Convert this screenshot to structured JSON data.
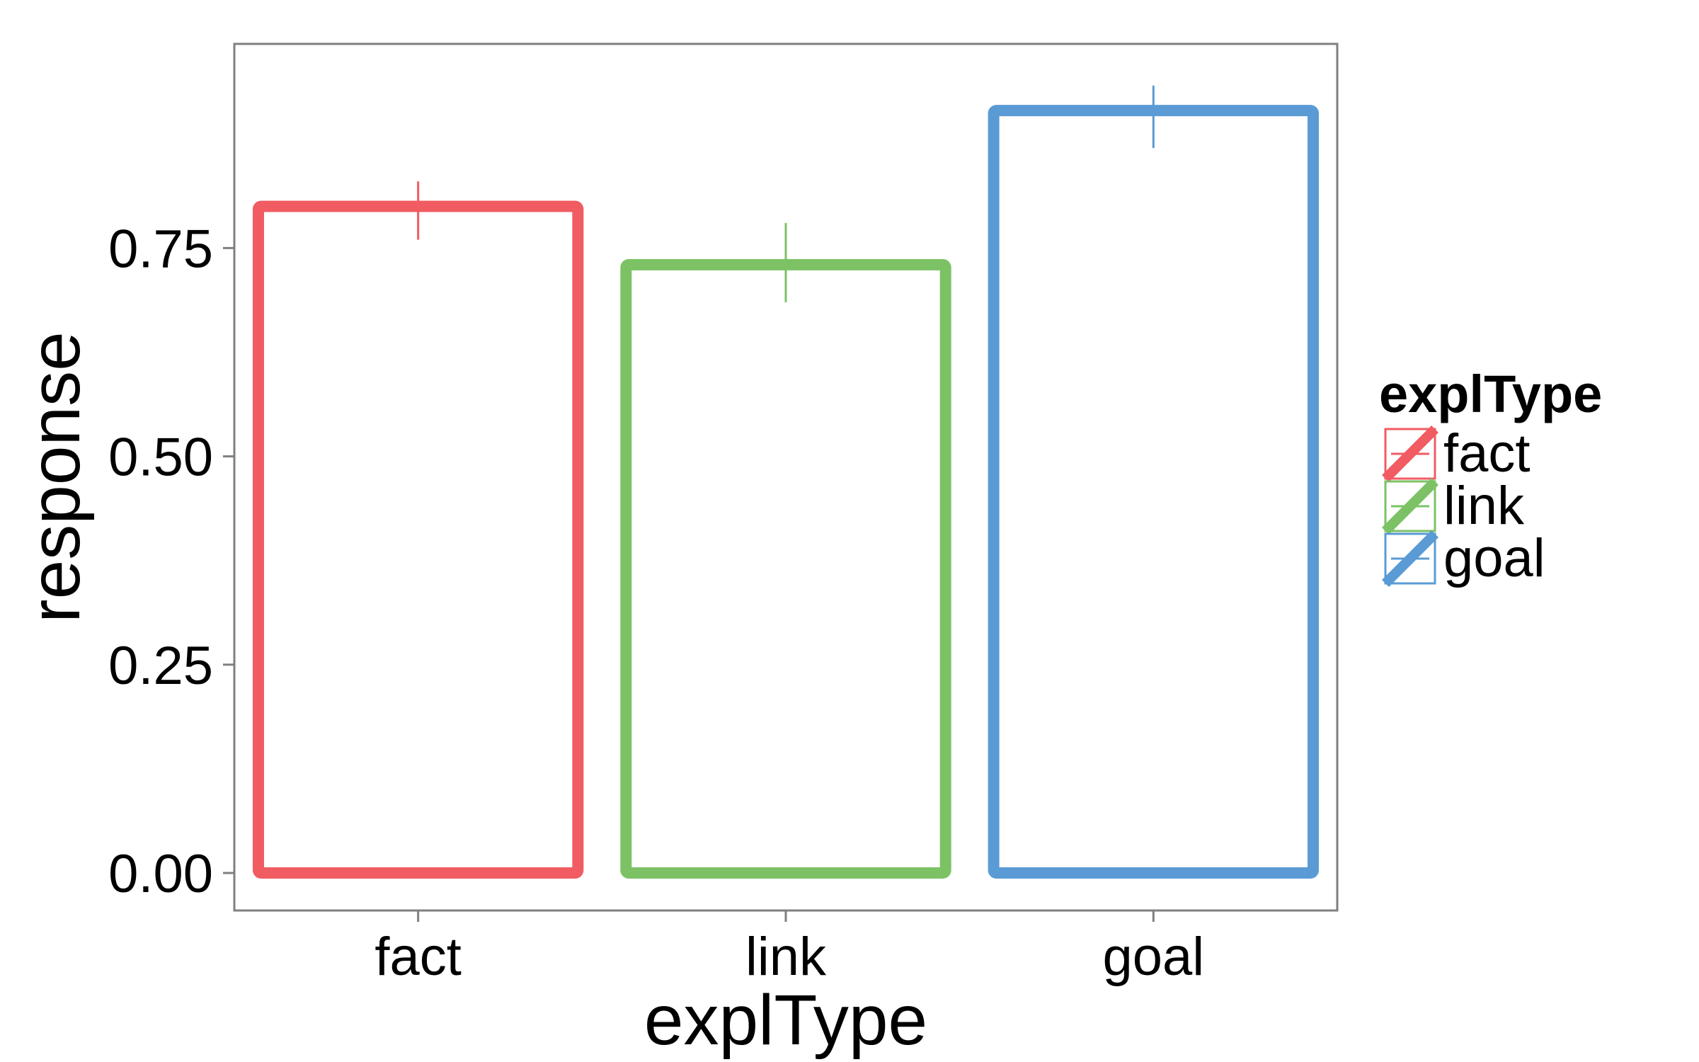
{
  "chart_data": {
    "type": "bar",
    "xlabel": "explType",
    "ylabel": "response",
    "categories": [
      "fact",
      "link",
      "goal"
    ],
    "values": [
      0.8,
      0.73,
      0.915
    ],
    "error_low": [
      0.76,
      0.685,
      0.87
    ],
    "error_high": [
      0.83,
      0.78,
      0.945
    ],
    "colors": [
      "#F05C62",
      "#7CC265",
      "#5A9BD5"
    ],
    "ylim": [
      -0.045,
      0.995
    ],
    "y_ticks": [
      0.0,
      0.25,
      0.5,
      0.75
    ],
    "y_tick_labels": [
      "0.00",
      "0.25",
      "0.50",
      "0.75"
    ],
    "grid": false,
    "legend": {
      "title": "explType",
      "placement": "right",
      "items": [
        "fact",
        "link",
        "goal"
      ]
    }
  }
}
